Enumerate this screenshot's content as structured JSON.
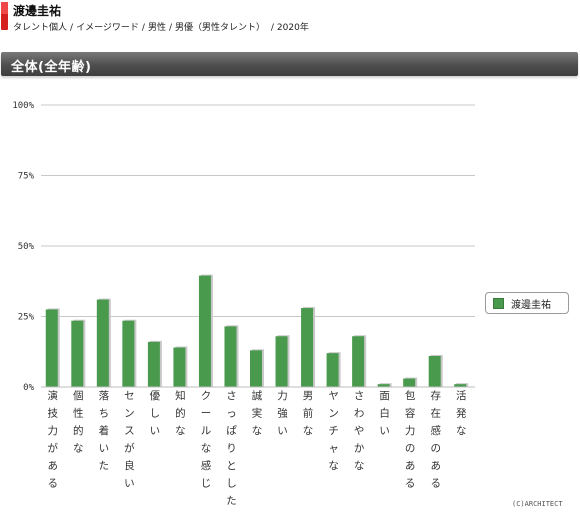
{
  "header": {
    "talent_name": "渡邊圭祐",
    "breadcrumb": [
      "タレント個人",
      "/",
      "イメージワード",
      "/",
      "男性",
      "/",
      "男優（男性タレント）",
      " /",
      "2020年"
    ]
  },
  "section": {
    "title": "全体(全年齢)"
  },
  "copyright": "(C)ARCHITECT",
  "colors": {
    "bar": "#4a9a4e",
    "bar_shadow": "#c8c8c8",
    "grid": "#c8c8c8",
    "section_bar": "#4e4e4e"
  },
  "chart_data": {
    "type": "bar",
    "ylim": [
      0,
      100
    ],
    "yticks": [
      "0%",
      "25%",
      "50%",
      "75%",
      "100%"
    ],
    "ytick_values": [
      0,
      25,
      50,
      75,
      100
    ],
    "grid": true,
    "legend_position": "right",
    "categories": [
      "演技力がある",
      "個性的な",
      "落ち着いた",
      "センスが良い",
      "優しい",
      "知的な",
      "クールな感じ",
      "さっぱりとした",
      "誠実な",
      "力強い",
      "男前な",
      "ヤンチャな",
      "さわやかな",
      "面白い",
      "包容力のある",
      "存在感のある",
      "活発な"
    ],
    "series": [
      {
        "name": "渡邊圭祐",
        "values": [
          27.5,
          23.5,
          31,
          23.5,
          16,
          14,
          39.5,
          21.5,
          13,
          18,
          28,
          12,
          18,
          1,
          3,
          11,
          1
        ]
      }
    ]
  }
}
